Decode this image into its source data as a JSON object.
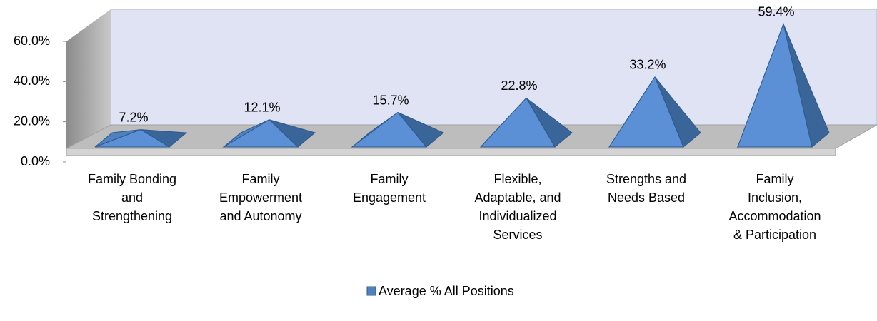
{
  "chart_data": {
    "type": "pyramid",
    "categories": [
      "Family Bonding\nand\nStrengthening",
      "Family\nEmpowerment\nand Autonomy",
      "Family\nEngagement",
      "Flexible,\nAdaptable, and\nIndividualized\nServices",
      "Strengths and\nNeeds Based",
      "Family\nInclusion,\nAccommodation\n& Participation"
    ],
    "series": [
      {
        "name": "Average % All Positions",
        "color": "#4f81bd",
        "values": [
          7.2,
          12.1,
          15.7,
          22.8,
          33.2,
          59.4
        ],
        "value_labels": [
          "7.2%",
          "12.1%",
          "15.7%",
          "22.8%",
          "33.2%",
          "59.4%"
        ]
      }
    ],
    "ylim": [
      0,
      60
    ],
    "yticks": [
      {
        "value": 0,
        "label": "0.0%"
      },
      {
        "value": 20,
        "label": "20.0%"
      },
      {
        "value": 40,
        "label": "40.0%"
      },
      {
        "value": 60,
        "label": "60.0%"
      }
    ],
    "legend": "bottom"
  }
}
